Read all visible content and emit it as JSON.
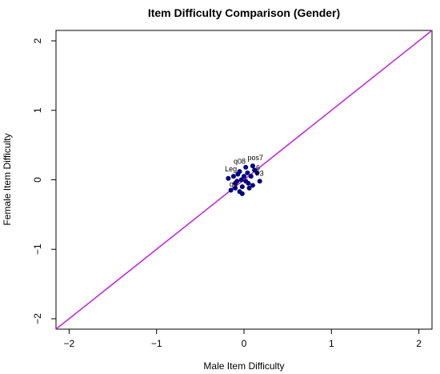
{
  "chart_data": {
    "type": "scatter",
    "title": "Item Difficulty Comparison (Gender)",
    "xlabel": "Male Item Difficulty",
    "ylabel": "Female Item Difficulty",
    "xlim": [
      -2.15,
      2.15
    ],
    "ylim": [
      -2.15,
      2.15
    ],
    "xticks": [
      -2,
      -1,
      0,
      1,
      2
    ],
    "yticks": [
      -2,
      -1,
      0,
      1,
      2
    ],
    "reference_line": {
      "slope": 1,
      "intercept": 0,
      "color": "#c020e0"
    },
    "point_color": "#000080",
    "points": [
      {
        "x": -0.12,
        "y": 0.05
      },
      {
        "x": -0.08,
        "y": -0.02
      },
      {
        "x": -0.05,
        "y": 0.12
      },
      {
        "x": 0.02,
        "y": 0.18
      },
      {
        "x": 0.1,
        "y": 0.2
      },
      {
        "x": 0.08,
        "y": 0.05
      },
      {
        "x": 0.15,
        "y": 0.1
      },
      {
        "x": 0.18,
        "y": -0.02
      },
      {
        "x": 0.05,
        "y": -0.05
      },
      {
        "x": -0.02,
        "y": -0.1
      },
      {
        "x": -0.15,
        "y": -0.15
      },
      {
        "x": -0.1,
        "y": -0.12
      },
      {
        "x": -0.05,
        "y": -0.17
      },
      {
        "x": -0.02,
        "y": -0.2
      },
      {
        "x": 0.1,
        "y": -0.08
      },
      {
        "x": 0.0,
        "y": 0.05
      },
      {
        "x": -0.18,
        "y": 0.02
      },
      {
        "x": 0.04,
        "y": 0.1
      },
      {
        "x": -0.07,
        "y": 0.08
      },
      {
        "x": 0.12,
        "y": 0.14
      },
      {
        "x": -0.1,
        "y": -0.05
      },
      {
        "x": 0.06,
        "y": -0.12
      },
      {
        "x": -0.03,
        "y": 0.0
      },
      {
        "x": 0.02,
        "y": -0.02
      }
    ],
    "point_labels": [
      {
        "text": "pos7",
        "x": 0.13,
        "y": 0.28
      },
      {
        "text": "q08",
        "x": -0.05,
        "y": 0.23
      },
      {
        "text": "Leg",
        "x": -0.15,
        "y": 0.12
      },
      {
        "text": "6",
        "x": 0.16,
        "y": 0.14
      },
      {
        "text": "lr3",
        "x": 0.18,
        "y": 0.06
      },
      {
        "text": "q0",
        "x": -0.12,
        "y": -0.1
      }
    ]
  }
}
